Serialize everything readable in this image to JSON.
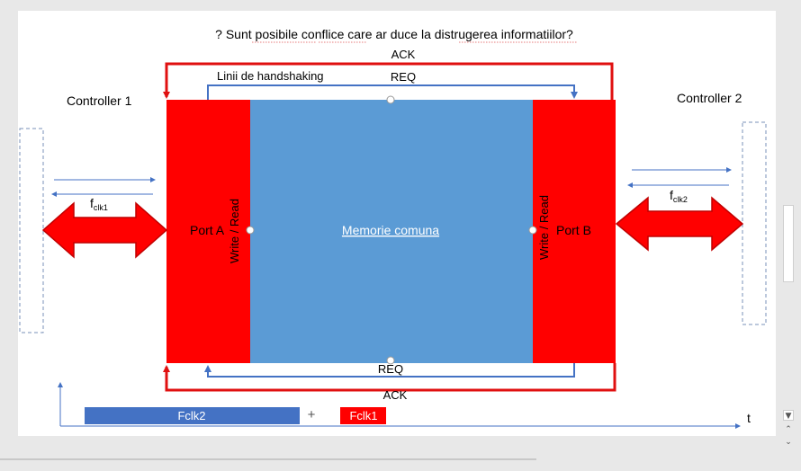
{
  "question": "? Sunt posibile conflice care ar duce la distrugerea informatiilor?",
  "controller1": "Controller 1",
  "controller2": "Controller 2",
  "handshaking": "Linii de handshaking",
  "ack_top": "ACK",
  "req_top": "REQ",
  "req_bottom": "REQ",
  "ack_bottom": "ACK",
  "memory": "Memorie comuna",
  "port_a": "Port A",
  "port_b": "Port B",
  "write_read_a": "Write / Read",
  "write_read_b": "Write / Read",
  "fclk1": {
    "base": "f",
    "sub": "clk1"
  },
  "fclk2": {
    "base": "f",
    "sub": "clk2"
  },
  "timeline": {
    "bar1": "Fclk2",
    "plus": "+",
    "bar2": "Fclk1",
    "axis": "t"
  },
  "colors": {
    "red": "#ff0000",
    "blue": "#5b9bd5",
    "line_blue": "#4472c4",
    "dark_red": "#e01010"
  },
  "icons": {
    "scroll_down": "arrow-down-icon",
    "page_up": "double-up-icon",
    "page_down": "double-down-icon"
  }
}
